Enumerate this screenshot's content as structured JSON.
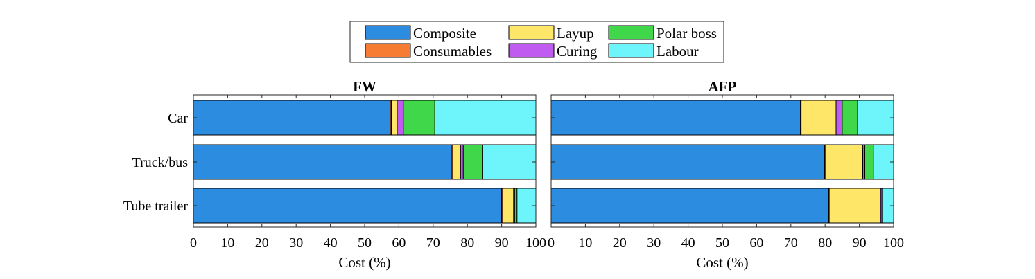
{
  "legend": {
    "placement": "top-center",
    "entries": [
      {
        "label": "Composite",
        "color": "#2b8ce0"
      },
      {
        "label": "Layup",
        "color": "#fde668"
      },
      {
        "label": "Polar boss",
        "color": "#40d84a"
      },
      {
        "label": "Consumables",
        "color": "#f77c33"
      },
      {
        "label": "Curing",
        "color": "#c05cf0"
      },
      {
        "label": "Labour",
        "color": "#6ef5fb"
      }
    ]
  },
  "chart_data": [
    {
      "type": "bar",
      "orientation": "horizontal",
      "stacked": true,
      "title": "FW",
      "xlabel": "Cost (%)",
      "ylabel": "",
      "xlim": [
        0,
        100
      ],
      "xticks": [
        0,
        10,
        20,
        30,
        40,
        50,
        60,
        70,
        80,
        90,
        100
      ],
      "categories": [
        "Car",
        "Truck/bus",
        "Tube trailer"
      ],
      "series": [
        {
          "name": "Composite",
          "values": [
            57.5,
            75.5,
            90
          ]
        },
        {
          "name": "Consumables",
          "values": [
            0.3,
            0.3,
            0.3
          ]
        },
        {
          "name": "Layup",
          "values": [
            1.7,
            2.2,
            3.2
          ]
        },
        {
          "name": "Curing",
          "values": [
            1.8,
            0.8,
            0.3
          ]
        },
        {
          "name": "Polar boss",
          "values": [
            9.2,
            5.7,
            0.7
          ]
        },
        {
          "name": "Labour",
          "values": [
            29.5,
            15.5,
            5.5
          ]
        }
      ],
      "grid": false
    },
    {
      "type": "bar",
      "orientation": "horizontal",
      "stacked": true,
      "title": "AFP",
      "xlabel": "Cost (%)",
      "ylabel": "",
      "xlim": [
        0,
        100
      ],
      "xticks": [
        0,
        10,
        20,
        30,
        40,
        50,
        60,
        70,
        80,
        90,
        100
      ],
      "categories": [
        "Car",
        "Truck/bus",
        "Tube trailer"
      ],
      "series": [
        {
          "name": "Composite",
          "values": [
            72.8,
            79.8,
            81
          ]
        },
        {
          "name": "Consumables",
          "values": [
            0.2,
            0.2,
            0.2
          ]
        },
        {
          "name": "Layup",
          "values": [
            10.2,
            11,
            15
          ]
        },
        {
          "name": "Curing",
          "values": [
            1.8,
            0.6,
            0.4
          ]
        },
        {
          "name": "Polar boss",
          "values": [
            4.5,
            2.5,
            0.2
          ]
        },
        {
          "name": "Labour",
          "values": [
            10.5,
            5.9,
            3.2
          ]
        }
      ],
      "grid": false
    }
  ]
}
